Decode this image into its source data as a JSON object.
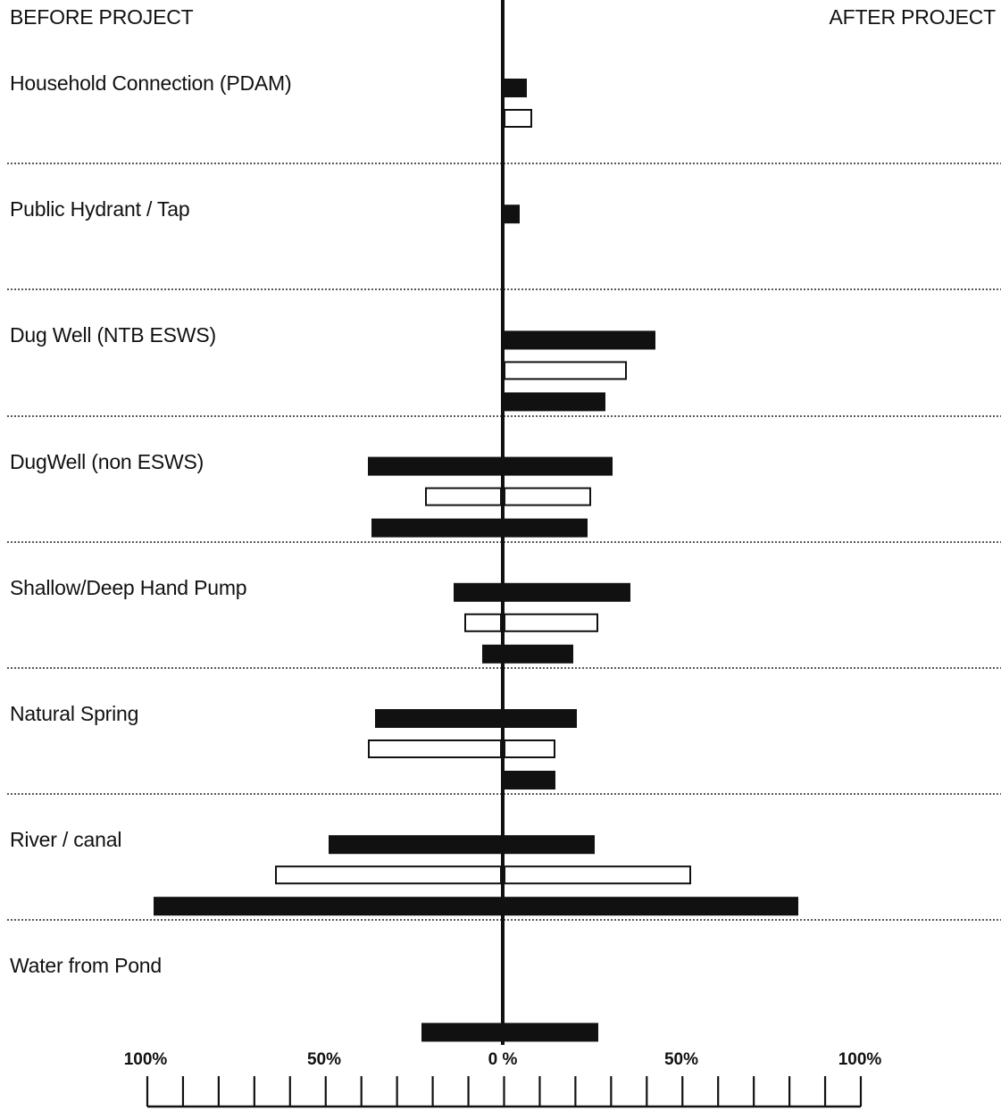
{
  "chart_data": {
    "type": "bar",
    "orientation": "horizontal-diverging",
    "left_heading": "BEFORE PROJECT",
    "right_heading": "AFTER PROJECT",
    "x_tick_labels": [
      "100%",
      "50%",
      "0 %",
      "50%",
      "100%"
    ],
    "xlim_before": [
      0,
      100
    ],
    "xlim_after": [
      0,
      100
    ],
    "bar_styles": [
      "filled",
      "outline",
      "filled"
    ],
    "colors": {
      "filled": "#111111",
      "outline": "#ffffff",
      "stroke": "#111111"
    },
    "categories": [
      {
        "label": "Household Connection (PDAM)",
        "bars": [
          {
            "before": 0,
            "after": 6
          },
          {
            "before": 0,
            "after": 7.5
          },
          null
        ]
      },
      {
        "label": "Public Hydrant / Tap",
        "bars": [
          {
            "before": 0,
            "after": 4
          },
          null,
          null
        ]
      },
      {
        "label": "Dug Well (NTB ESWS)",
        "bars": [
          {
            "before": 0,
            "after": 42
          },
          {
            "before": 0,
            "after": 34
          },
          {
            "before": 0,
            "after": 28
          }
        ]
      },
      {
        "label": "DugWell (non ESWS)",
        "bars": [
          {
            "before": 37,
            "after": 30
          },
          {
            "before": 21,
            "after": 24
          },
          {
            "before": 36,
            "after": 23
          }
        ]
      },
      {
        "label": "Shallow/Deep Hand Pump",
        "bars": [
          {
            "before": 13,
            "after": 35
          },
          {
            "before": 10,
            "after": 26
          },
          {
            "before": 5,
            "after": 19
          }
        ]
      },
      {
        "label": "Natural Spring",
        "bars": [
          {
            "before": 35,
            "after": 20
          },
          {
            "before": 37,
            "after": 14
          },
          {
            "before": 0,
            "after": 14
          }
        ]
      },
      {
        "label": "River / canal",
        "bars": [
          {
            "before": 48,
            "after": 25
          },
          {
            "before": 63,
            "after": 52
          },
          {
            "before": 97,
            "after": 82
          }
        ]
      },
      {
        "label": "Water from Pond",
        "bars": [
          null,
          null,
          {
            "before": 22,
            "after": 26
          }
        ]
      }
    ]
  }
}
